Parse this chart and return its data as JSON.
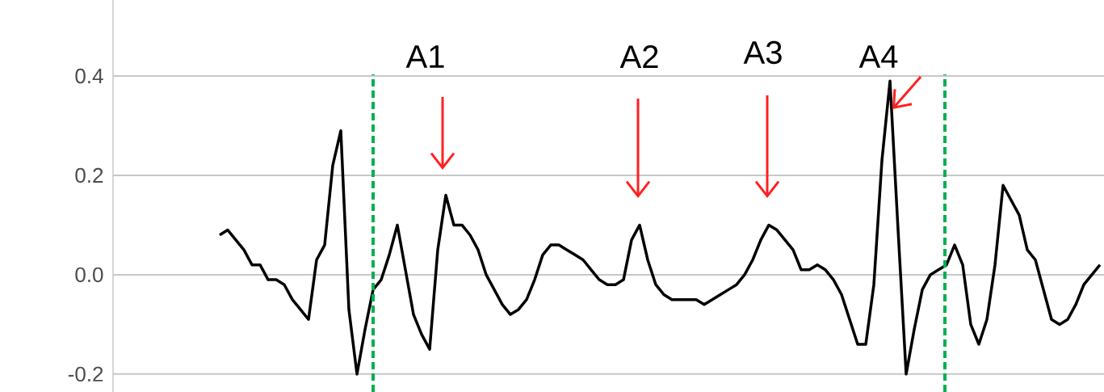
{
  "chart_data": {
    "type": "line",
    "categories": [
      null,
      null,
      null,
      null,
      null,
      null,
      null,
      null,
      null,
      null,
      null,
      null,
      null,
      null,
      null,
      null,
      null,
      null,
      null,
      null,
      null,
      null,
      null,
      null,
      null,
      null,
      null,
      null,
      null,
      null,
      null,
      null,
      null,
      null,
      null,
      null,
      null,
      null,
      null,
      null,
      null,
      null,
      null,
      null,
      null,
      null,
      null,
      null,
      null,
      null,
      null,
      null,
      null,
      null,
      null,
      null,
      null,
      null,
      null,
      null,
      null,
      null,
      null,
      null,
      null,
      null,
      null,
      null,
      null,
      null,
      null,
      null,
      null,
      null,
      null,
      null,
      null,
      null,
      null,
      null,
      null,
      null,
      null,
      null,
      null,
      null,
      null,
      null,
      null,
      null,
      null,
      null,
      null,
      null,
      null,
      null,
      null,
      null,
      null,
      null,
      null,
      null,
      null,
      null,
      null,
      null,
      null,
      null,
      null,
      null
    ],
    "series": [
      {
        "color": "#000000",
        "values": [
          0.08,
          0.09,
          0.07,
          0.05,
          0.02,
          0.02,
          -0.01,
          -0.01,
          -0.02,
          -0.05,
          -0.07,
          -0.09,
          0.03,
          0.06,
          0.22,
          0.29,
          -0.07,
          -0.2,
          -0.11,
          -0.03,
          -0.01,
          0.04,
          0.1,
          0.01,
          -0.08,
          -0.12,
          -0.15,
          0.05,
          0.16,
          0.1,
          0.1,
          0.08,
          0.05,
          0.0,
          -0.03,
          -0.06,
          -0.08,
          -0.07,
          -0.05,
          -0.01,
          0.04,
          0.06,
          0.06,
          0.05,
          0.04,
          0.03,
          0.01,
          -0.01,
          -0.02,
          -0.02,
          -0.01,
          0.07,
          0.1,
          0.03,
          -0.02,
          -0.04,
          -0.05,
          -0.05,
          -0.05,
          -0.05,
          -0.06,
          -0.05,
          -0.04,
          -0.03,
          -0.02,
          0.0,
          0.03,
          0.07,
          0.1,
          0.09,
          0.07,
          0.05,
          0.01,
          0.01,
          0.02,
          0.01,
          -0.01,
          -0.04,
          -0.09,
          -0.14,
          -0.14,
          -0.02,
          0.23,
          0.39,
          0.09,
          -0.2,
          -0.11,
          -0.03,
          0.0,
          0.01,
          0.02,
          0.06,
          0.02,
          -0.1,
          -0.14,
          -0.09,
          0.02,
          0.18,
          0.15,
          0.12,
          0.05,
          0.03,
          -0.03,
          -0.09,
          -0.1,
          -0.09,
          -0.06,
          -0.02,
          0.0,
          0.02
        ]
      }
    ],
    "ylim": [
      -0.236,
      0.553
    ],
    "yticks": [
      {
        "value": -0.2,
        "label": "-0.2"
      },
      {
        "value": 0,
        "label": "0.0"
      },
      {
        "value": 0.2,
        "label": "0.2"
      },
      {
        "value": 0.4,
        "label": "0.4"
      }
    ],
    "grid": "y",
    "annotations": [
      "A1",
      "A2",
      "A3",
      "A4"
    ]
  }
}
